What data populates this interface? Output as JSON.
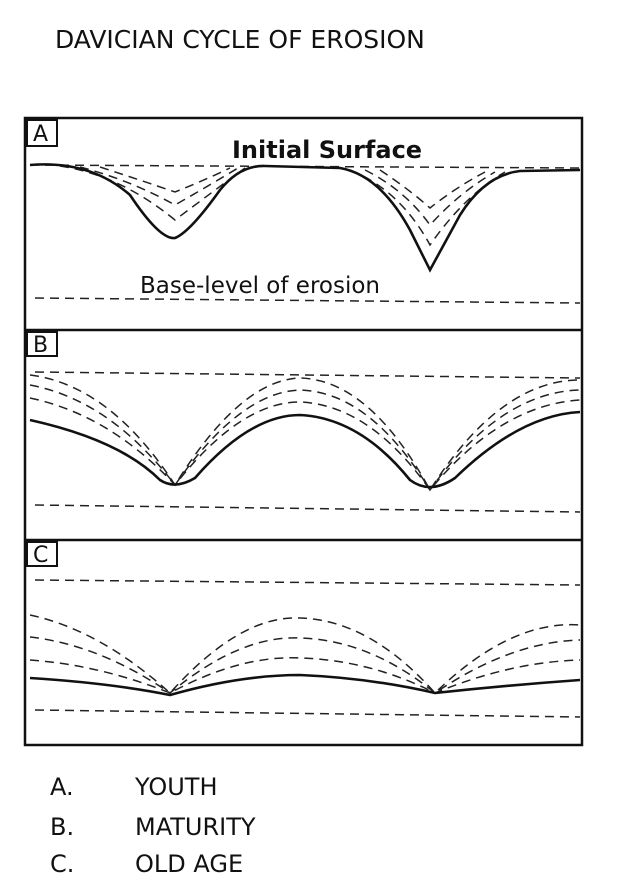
{
  "title": "DAVICIAN CYCLE OF EROSION",
  "panels": [
    {
      "label": "A",
      "top_label": "Initial Surface",
      "bottom_label": "Base-level of erosion"
    },
    {
      "label": "B"
    },
    {
      "label": "C"
    }
  ],
  "legend": [
    {
      "key": "A.",
      "text": "YOUTH"
    },
    {
      "key": "B.",
      "text": "MATURITY"
    },
    {
      "key": "C.",
      "text": "OLD AGE"
    }
  ]
}
